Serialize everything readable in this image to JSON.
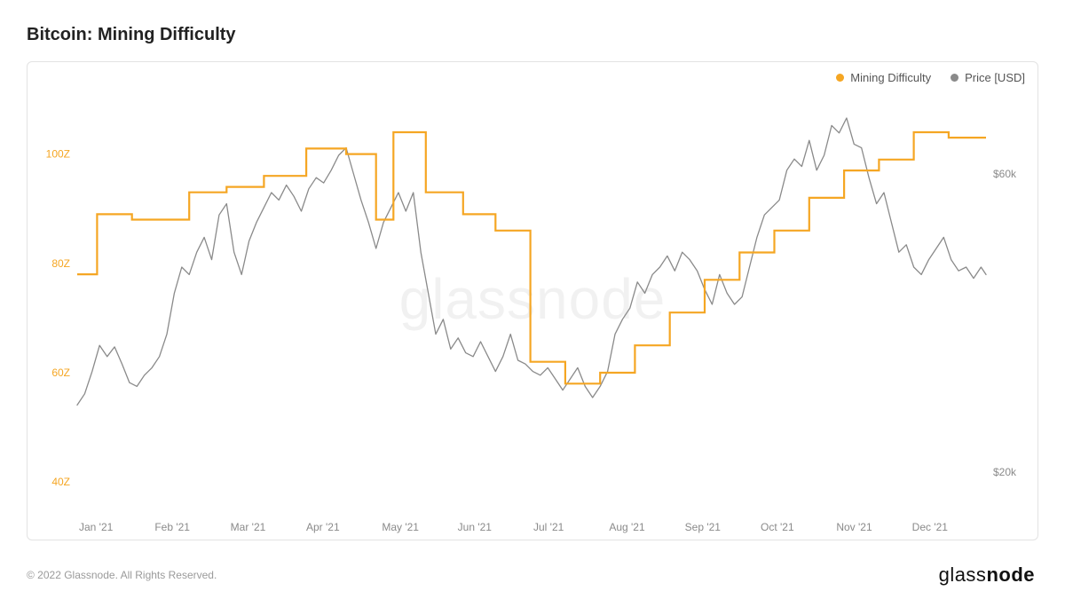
{
  "title": "Bitcoin: Mining Difficulty",
  "footer": "© 2022 Glassnode. All Rights Reserved.",
  "brand": "glassnode",
  "watermark": "glassnode",
  "legend": {
    "series1": {
      "label": "Mining Difficulty",
      "color": "#f5a623"
    },
    "series2": {
      "label": "Price [USD]",
      "color": "#8a8a8a"
    }
  },
  "chart": {
    "background_color": "#ffffff",
    "frame_color": "#e3e3e3",
    "xlabels": [
      "Jan '21",
      "Feb '21",
      "Mar '21",
      "Apr '21",
      "May '21",
      "Jun '21",
      "Jul '21",
      "Aug '21",
      "Sep '21",
      "Oct '21",
      "Nov '21",
      "Dec '21"
    ],
    "x_domain": [
      0,
      365
    ],
    "y_left": {
      "domain": [
        35,
        110
      ],
      "ticks": [
        40,
        60,
        80,
        100
      ],
      "tick_labels": [
        "40Z",
        "60Z",
        "80Z",
        "100Z"
      ],
      "color": "#f5a623"
    },
    "y_right": {
      "domain": [
        15000,
        70000
      ],
      "ticks": [
        20000,
        60000
      ],
      "tick_labels": [
        "$20k",
        "$60k"
      ],
      "color": "#8a8a8a"
    },
    "series": {
      "difficulty": {
        "color": "#f5a623",
        "width": 2.2,
        "step": true,
        "points": [
          [
            0,
            78
          ],
          [
            8,
            78
          ],
          [
            8,
            89
          ],
          [
            22,
            89
          ],
          [
            22,
            88
          ],
          [
            45,
            88
          ],
          [
            45,
            93
          ],
          [
            60,
            93
          ],
          [
            60,
            94
          ],
          [
            75,
            94
          ],
          [
            75,
            96
          ],
          [
            92,
            96
          ],
          [
            92,
            101
          ],
          [
            108,
            101
          ],
          [
            108,
            100
          ],
          [
            120,
            100
          ],
          [
            120,
            88
          ],
          [
            127,
            88
          ],
          [
            127,
            104
          ],
          [
            140,
            104
          ],
          [
            140,
            93
          ],
          [
            155,
            93
          ],
          [
            155,
            89
          ],
          [
            168,
            89
          ],
          [
            168,
            86
          ],
          [
            182,
            86
          ],
          [
            182,
            62
          ],
          [
            196,
            62
          ],
          [
            196,
            58
          ],
          [
            210,
            58
          ],
          [
            210,
            60
          ],
          [
            224,
            60
          ],
          [
            224,
            65
          ],
          [
            238,
            65
          ],
          [
            238,
            71
          ],
          [
            252,
            71
          ],
          [
            252,
            77
          ],
          [
            266,
            77
          ],
          [
            266,
            82
          ],
          [
            280,
            82
          ],
          [
            280,
            86
          ],
          [
            294,
            86
          ],
          [
            294,
            92
          ],
          [
            308,
            92
          ],
          [
            308,
            97
          ],
          [
            322,
            97
          ],
          [
            322,
            99
          ],
          [
            336,
            99
          ],
          [
            336,
            104
          ],
          [
            350,
            104
          ],
          [
            350,
            103
          ],
          [
            365,
            103
          ]
        ]
      },
      "price": {
        "color": "#8a8a8a",
        "width": 1.3,
        "step": false,
        "points": [
          [
            0,
            29000
          ],
          [
            3,
            30500
          ],
          [
            6,
            33500
          ],
          [
            9,
            37000
          ],
          [
            12,
            35500
          ],
          [
            15,
            36800
          ],
          [
            18,
            34500
          ],
          [
            21,
            32000
          ],
          [
            24,
            31500
          ],
          [
            27,
            33000
          ],
          [
            30,
            34000
          ],
          [
            33,
            35500
          ],
          [
            36,
            38500
          ],
          [
            39,
            44000
          ],
          [
            42,
            47500
          ],
          [
            45,
            46500
          ],
          [
            48,
            49500
          ],
          [
            51,
            51500
          ],
          [
            54,
            48500
          ],
          [
            57,
            54500
          ],
          [
            60,
            56000
          ],
          [
            63,
            49500
          ],
          [
            66,
            46500
          ],
          [
            69,
            51000
          ],
          [
            72,
            53500
          ],
          [
            75,
            55500
          ],
          [
            78,
            57500
          ],
          [
            81,
            56500
          ],
          [
            84,
            58500
          ],
          [
            87,
            57000
          ],
          [
            90,
            55000
          ],
          [
            93,
            58000
          ],
          [
            96,
            59500
          ],
          [
            99,
            58800
          ],
          [
            102,
            60500
          ],
          [
            105,
            62500
          ],
          [
            108,
            63500
          ],
          [
            111,
            60000
          ],
          [
            114,
            56500
          ],
          [
            117,
            53500
          ],
          [
            120,
            50000
          ],
          [
            123,
            53500
          ],
          [
            126,
            55500
          ],
          [
            129,
            57500
          ],
          [
            132,
            55000
          ],
          [
            135,
            57500
          ],
          [
            138,
            49500
          ],
          [
            141,
            44000
          ],
          [
            144,
            38500
          ],
          [
            147,
            40500
          ],
          [
            150,
            36500
          ],
          [
            153,
            38000
          ],
          [
            156,
            36000
          ],
          [
            159,
            35500
          ],
          [
            162,
            37500
          ],
          [
            165,
            35500
          ],
          [
            168,
            33500
          ],
          [
            171,
            35500
          ],
          [
            174,
            38500
          ],
          [
            177,
            35000
          ],
          [
            180,
            34500
          ],
          [
            183,
            33500
          ],
          [
            186,
            33000
          ],
          [
            189,
            34000
          ],
          [
            192,
            32500
          ],
          [
            195,
            31000
          ],
          [
            198,
            32500
          ],
          [
            201,
            34000
          ],
          [
            204,
            31500
          ],
          [
            207,
            30000
          ],
          [
            210,
            31500
          ],
          [
            213,
            33500
          ],
          [
            216,
            38500
          ],
          [
            219,
            40500
          ],
          [
            222,
            42000
          ],
          [
            225,
            45500
          ],
          [
            228,
            44000
          ],
          [
            231,
            46500
          ],
          [
            234,
            47500
          ],
          [
            237,
            49000
          ],
          [
            240,
            47000
          ],
          [
            243,
            49500
          ],
          [
            246,
            48500
          ],
          [
            249,
            47000
          ],
          [
            252,
            44500
          ],
          [
            255,
            42500
          ],
          [
            258,
            46500
          ],
          [
            261,
            44000
          ],
          [
            264,
            42500
          ],
          [
            267,
            43500
          ],
          [
            270,
            47500
          ],
          [
            273,
            51500
          ],
          [
            276,
            54500
          ],
          [
            279,
            55500
          ],
          [
            282,
            56500
          ],
          [
            285,
            60500
          ],
          [
            288,
            62000
          ],
          [
            291,
            61000
          ],
          [
            294,
            64500
          ],
          [
            297,
            60500
          ],
          [
            300,
            62500
          ],
          [
            303,
            66500
          ],
          [
            306,
            65500
          ],
          [
            309,
            67500
          ],
          [
            312,
            64000
          ],
          [
            315,
            63500
          ],
          [
            318,
            59500
          ],
          [
            321,
            56000
          ],
          [
            324,
            57500
          ],
          [
            327,
            53500
          ],
          [
            330,
            49500
          ],
          [
            333,
            50500
          ],
          [
            336,
            47500
          ],
          [
            339,
            46500
          ],
          [
            342,
            48500
          ],
          [
            345,
            50000
          ],
          [
            348,
            51500
          ],
          [
            351,
            48500
          ],
          [
            354,
            47000
          ],
          [
            357,
            47500
          ],
          [
            360,
            46000
          ],
          [
            363,
            47500
          ],
          [
            365,
            46500
          ]
        ]
      }
    }
  }
}
